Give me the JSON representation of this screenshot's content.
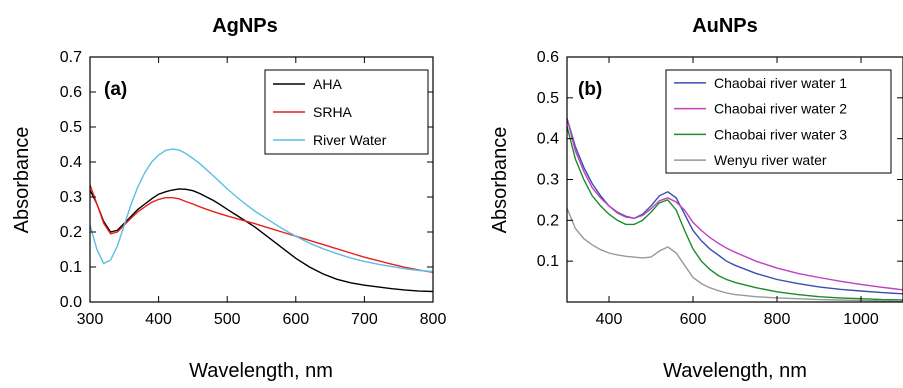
{
  "chart_data": [
    {
      "type": "line",
      "title": "AgNPs",
      "panel_label": "(a)",
      "xlabel": "Wavelength, nm",
      "ylabel": "Absorbance",
      "xlim": [
        300,
        800
      ],
      "ylim": [
        0.0,
        0.7
      ],
      "xticks": [
        "300",
        "400",
        "500",
        "600",
        "700",
        "800"
      ],
      "yticks": [
        "0.0",
        "0.1",
        "0.2",
        "0.3",
        "0.4",
        "0.5",
        "0.6",
        "0.7"
      ],
      "legend_position": "top-right",
      "series": [
        {
          "name": "AHA",
          "color": "#000000",
          "points": [
            [
              300,
              0.32
            ],
            [
              310,
              0.28
            ],
            [
              320,
              0.23
            ],
            [
              330,
              0.2
            ],
            [
              340,
              0.205
            ],
            [
              350,
              0.225
            ],
            [
              360,
              0.245
            ],
            [
              370,
              0.265
            ],
            [
              380,
              0.28
            ],
            [
              390,
              0.295
            ],
            [
              400,
              0.308
            ],
            [
              410,
              0.315
            ],
            [
              420,
              0.32
            ],
            [
              430,
              0.323
            ],
            [
              440,
              0.322
            ],
            [
              450,
              0.318
            ],
            [
              460,
              0.31
            ],
            [
              470,
              0.3
            ],
            [
              480,
              0.29
            ],
            [
              490,
              0.278
            ],
            [
              500,
              0.265
            ],
            [
              520,
              0.24
            ],
            [
              540,
              0.215
            ],
            [
              560,
              0.185
            ],
            [
              580,
              0.155
            ],
            [
              600,
              0.125
            ],
            [
              620,
              0.1
            ],
            [
              640,
              0.08
            ],
            [
              660,
              0.065
            ],
            [
              680,
              0.055
            ],
            [
              700,
              0.048
            ],
            [
              720,
              0.043
            ],
            [
              740,
              0.038
            ],
            [
              760,
              0.034
            ],
            [
              780,
              0.031
            ],
            [
              800,
              0.03
            ]
          ]
        },
        {
          "name": "SRHA",
          "color": "#e8211b",
          "points": [
            [
              300,
              0.335
            ],
            [
              310,
              0.28
            ],
            [
              320,
              0.225
            ],
            [
              330,
              0.195
            ],
            [
              340,
              0.2
            ],
            [
              350,
              0.22
            ],
            [
              360,
              0.24
            ],
            [
              370,
              0.258
            ],
            [
              380,
              0.272
            ],
            [
              390,
              0.285
            ],
            [
              400,
              0.293
            ],
            [
              410,
              0.298
            ],
            [
              420,
              0.298
            ],
            [
              430,
              0.295
            ],
            [
              440,
              0.287
            ],
            [
              450,
              0.28
            ],
            [
              460,
              0.272
            ],
            [
              470,
              0.265
            ],
            [
              480,
              0.258
            ],
            [
              490,
              0.252
            ],
            [
              500,
              0.246
            ],
            [
              520,
              0.235
            ],
            [
              540,
              0.224
            ],
            [
              560,
              0.212
            ],
            [
              580,
              0.2
            ],
            [
              600,
              0.188
            ],
            [
              620,
              0.176
            ],
            [
              640,
              0.164
            ],
            [
              660,
              0.152
            ],
            [
              680,
              0.14
            ],
            [
              700,
              0.128
            ],
            [
              720,
              0.118
            ],
            [
              740,
              0.108
            ],
            [
              760,
              0.099
            ],
            [
              780,
              0.091
            ],
            [
              800,
              0.085
            ]
          ]
        },
        {
          "name": "River Water",
          "color": "#5bbfe3",
          "points": [
            [
              300,
              0.22
            ],
            [
              310,
              0.15
            ],
            [
              320,
              0.11
            ],
            [
              330,
              0.12
            ],
            [
              340,
              0.16
            ],
            [
              350,
              0.22
            ],
            [
              360,
              0.28
            ],
            [
              370,
              0.33
            ],
            [
              380,
              0.37
            ],
            [
              390,
              0.4
            ],
            [
              400,
              0.42
            ],
            [
              410,
              0.433
            ],
            [
              420,
              0.437
            ],
            [
              430,
              0.434
            ],
            [
              440,
              0.424
            ],
            [
              450,
              0.41
            ],
            [
              460,
              0.395
            ],
            [
              470,
              0.378
            ],
            [
              480,
              0.36
            ],
            [
              490,
              0.342
            ],
            [
              500,
              0.323
            ],
            [
              520,
              0.29
            ],
            [
              540,
              0.26
            ],
            [
              560,
              0.235
            ],
            [
              580,
              0.21
            ],
            [
              600,
              0.188
            ],
            [
              620,
              0.168
            ],
            [
              640,
              0.152
            ],
            [
              660,
              0.138
            ],
            [
              680,
              0.126
            ],
            [
              700,
              0.116
            ],
            [
              720,
              0.108
            ],
            [
              740,
              0.101
            ],
            [
              760,
              0.095
            ],
            [
              780,
              0.09
            ],
            [
              800,
              0.087
            ]
          ]
        }
      ]
    },
    {
      "type": "line",
      "title": "AuNPs",
      "panel_label": "(b)",
      "xlabel": "Wavelength, nm",
      "ylabel": "Absorbance",
      "xlim": [
        300,
        1100
      ],
      "ylim": [
        0.0,
        0.6
      ],
      "xticks": [
        "400",
        "600",
        "800",
        "1000"
      ],
      "xtick_values": [
        400,
        600,
        800,
        1000
      ],
      "yticks": [
        "0.1",
        "0.2",
        "0.3",
        "0.4",
        "0.5",
        "0.6"
      ],
      "ytick_values": [
        0.1,
        0.2,
        0.3,
        0.4,
        0.5,
        0.6
      ],
      "legend_position": "top-right",
      "series": [
        {
          "name": "Chaobai river water 1",
          "color": "#3a4fb0",
          "points": [
            [
              300,
              0.45
            ],
            [
              320,
              0.38
            ],
            [
              340,
              0.33
            ],
            [
              360,
              0.29
            ],
            [
              380,
              0.26
            ],
            [
              400,
              0.235
            ],
            [
              420,
              0.22
            ],
            [
              440,
              0.21
            ],
            [
              460,
              0.205
            ],
            [
              480,
              0.215
            ],
            [
              500,
              0.235
            ],
            [
              520,
              0.26
            ],
            [
              540,
              0.27
            ],
            [
              560,
              0.255
            ],
            [
              580,
              0.215
            ],
            [
              600,
              0.175
            ],
            [
              620,
              0.15
            ],
            [
              640,
              0.13
            ],
            [
              660,
              0.115
            ],
            [
              680,
              0.1
            ],
            [
              700,
              0.09
            ],
            [
              750,
              0.07
            ],
            [
              800,
              0.055
            ],
            [
              850,
              0.045
            ],
            [
              900,
              0.037
            ],
            [
              950,
              0.031
            ],
            [
              1000,
              0.027
            ],
            [
              1050,
              0.023
            ],
            [
              1100,
              0.02
            ]
          ]
        },
        {
          "name": "Chaobai river water 2",
          "color": "#c040c0",
          "points": [
            [
              300,
              0.45
            ],
            [
              320,
              0.37
            ],
            [
              340,
              0.32
            ],
            [
              360,
              0.28
            ],
            [
              380,
              0.255
            ],
            [
              400,
              0.235
            ],
            [
              420,
              0.218
            ],
            [
              440,
              0.208
            ],
            [
              460,
              0.205
            ],
            [
              480,
              0.212
            ],
            [
              500,
              0.228
            ],
            [
              520,
              0.248
            ],
            [
              540,
              0.255
            ],
            [
              560,
              0.245
            ],
            [
              580,
              0.225
            ],
            [
              600,
              0.195
            ],
            [
              620,
              0.175
            ],
            [
              640,
              0.158
            ],
            [
              660,
              0.144
            ],
            [
              680,
              0.132
            ],
            [
              700,
              0.122
            ],
            [
              750,
              0.1
            ],
            [
              800,
              0.083
            ],
            [
              850,
              0.07
            ],
            [
              900,
              0.06
            ],
            [
              950,
              0.051
            ],
            [
              1000,
              0.043
            ],
            [
              1050,
              0.036
            ],
            [
              1100,
              0.03
            ]
          ]
        },
        {
          "name": "Chaobai river water 3",
          "color": "#1b8c2a",
          "points": [
            [
              300,
              0.43
            ],
            [
              320,
              0.35
            ],
            [
              340,
              0.3
            ],
            [
              360,
              0.26
            ],
            [
              380,
              0.235
            ],
            [
              400,
              0.215
            ],
            [
              420,
              0.2
            ],
            [
              440,
              0.19
            ],
            [
              460,
              0.19
            ],
            [
              480,
              0.2
            ],
            [
              500,
              0.22
            ],
            [
              520,
              0.243
            ],
            [
              540,
              0.25
            ],
            [
              560,
              0.225
            ],
            [
              580,
              0.175
            ],
            [
              600,
              0.13
            ],
            [
              620,
              0.1
            ],
            [
              640,
              0.08
            ],
            [
              660,
              0.065
            ],
            [
              680,
              0.055
            ],
            [
              700,
              0.048
            ],
            [
              750,
              0.035
            ],
            [
              800,
              0.025
            ],
            [
              850,
              0.018
            ],
            [
              900,
              0.013
            ],
            [
              950,
              0.01
            ],
            [
              1000,
              0.008
            ],
            [
              1050,
              0.006
            ],
            [
              1100,
              0.005
            ]
          ]
        },
        {
          "name": "Wenyu river water",
          "color": "#999999",
          "points": [
            [
              300,
              0.23
            ],
            [
              320,
              0.18
            ],
            [
              340,
              0.155
            ],
            [
              360,
              0.14
            ],
            [
              380,
              0.128
            ],
            [
              400,
              0.12
            ],
            [
              420,
              0.115
            ],
            [
              440,
              0.112
            ],
            [
              460,
              0.11
            ],
            [
              480,
              0.108
            ],
            [
              500,
              0.11
            ],
            [
              520,
              0.125
            ],
            [
              540,
              0.135
            ],
            [
              560,
              0.12
            ],
            [
              580,
              0.09
            ],
            [
              600,
              0.06
            ],
            [
              620,
              0.045
            ],
            [
              640,
              0.035
            ],
            [
              660,
              0.028
            ],
            [
              680,
              0.022
            ],
            [
              700,
              0.018
            ],
            [
              750,
              0.013
            ],
            [
              800,
              0.01
            ],
            [
              850,
              0.008
            ],
            [
              900,
              0.006
            ],
            [
              950,
              0.005
            ],
            [
              1000,
              0.004
            ],
            [
              1050,
              0.003
            ],
            [
              1100,
              0.003
            ]
          ]
        }
      ]
    }
  ]
}
